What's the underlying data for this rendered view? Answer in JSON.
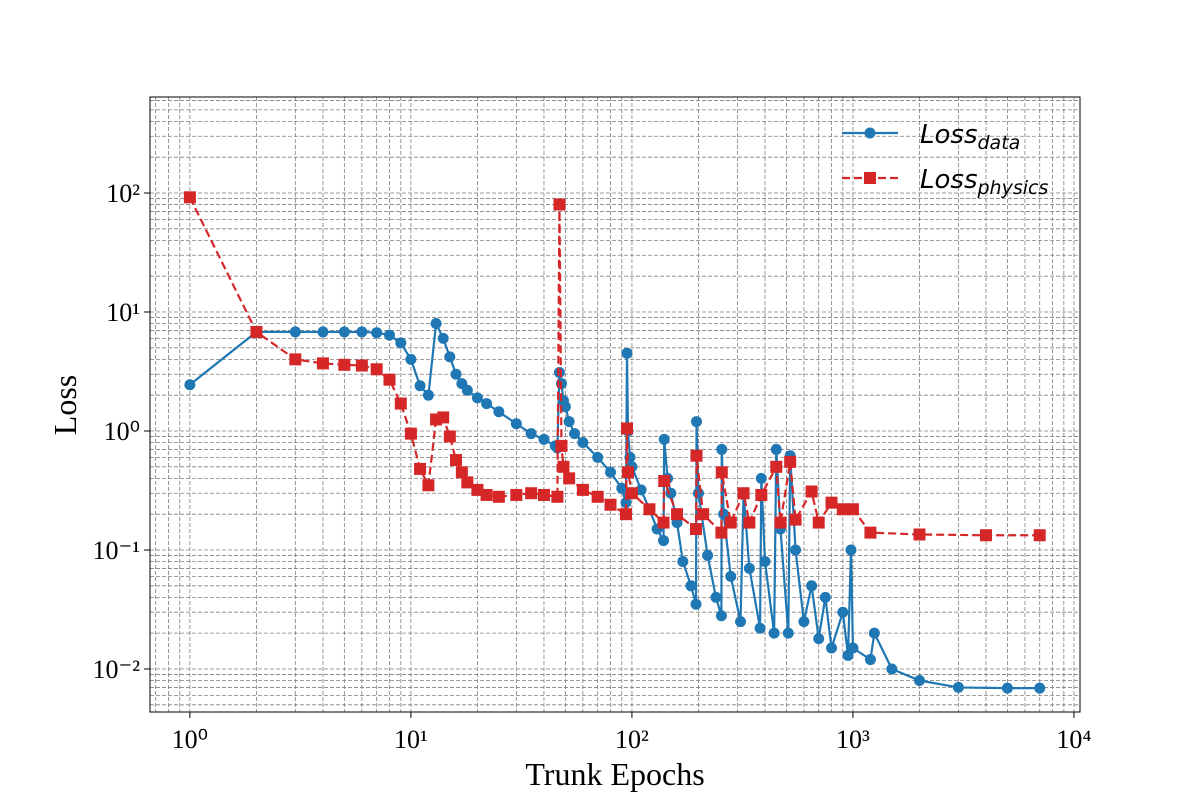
{
  "chart_data": {
    "type": "line",
    "x_label": "Trunk Epochs",
    "y_label": "Loss",
    "xscale": "log",
    "yscale": "log",
    "grid": true,
    "minor_grid": true,
    "legend": "upper right",
    "xlim": [
      0.66,
      10650
    ],
    "ylim": [
      0.00435,
      641
    ],
    "xticks": [
      {
        "value": 1,
        "label": "10⁰"
      },
      {
        "value": 10,
        "label": "10¹"
      },
      {
        "value": 100,
        "label": "10²"
      },
      {
        "value": 1000,
        "label": "10³"
      },
      {
        "value": 10000,
        "label": "10⁴"
      }
    ],
    "yticks": [
      {
        "value": 0.01,
        "label": "10⁻²"
      },
      {
        "value": 0.1,
        "label": "10⁻¹"
      },
      {
        "value": 1,
        "label": "10⁰"
      },
      {
        "value": 10,
        "label": "10¹"
      },
      {
        "value": 100,
        "label": "10²"
      }
    ],
    "series": [
      {
        "name": "Loss_data",
        "color": "#1f77b4",
        "marker": "circle",
        "linestyle": "solid",
        "x": [
          1,
          2,
          3,
          4,
          5,
          6,
          7,
          8,
          9,
          10,
          11,
          12,
          13,
          14,
          15,
          16,
          17,
          18,
          20,
          22,
          25,
          30,
          35,
          40,
          45,
          46,
          47,
          48,
          49,
          50,
          52,
          55,
          60,
          70,
          80,
          90,
          94,
          95,
          96,
          98,
          100,
          110,
          120,
          130,
          139,
          140,
          145,
          150,
          160,
          170,
          185,
          195,
          196,
          200,
          220,
          240,
          254,
          255,
          260,
          280,
          310,
          320,
          340,
          380,
          385,
          400,
          440,
          450,
          470,
          510,
          520,
          550,
          600,
          650,
          700,
          750,
          800,
          900,
          950,
          980,
          1000,
          1200,
          1250,
          1500,
          2000,
          3000,
          5000,
          7000
        ],
        "values": [
          2.45,
          6.8,
          6.8,
          6.8,
          6.8,
          6.8,
          6.7,
          6.4,
          5.5,
          4.0,
          2.4,
          2.0,
          8.0,
          6.0,
          4.2,
          3.0,
          2.5,
          2.2,
          1.9,
          1.7,
          1.45,
          1.15,
          0.95,
          0.85,
          0.75,
          0.72,
          3.1,
          2.5,
          1.8,
          1.6,
          1.2,
          0.95,
          0.8,
          0.6,
          0.45,
          0.33,
          0.25,
          4.5,
          1.0,
          0.6,
          0.5,
          0.32,
          0.22,
          0.15,
          0.12,
          0.85,
          0.4,
          0.3,
          0.17,
          0.08,
          0.05,
          0.035,
          1.2,
          0.3,
          0.09,
          0.04,
          0.028,
          0.7,
          0.2,
          0.06,
          0.025,
          0.3,
          0.07,
          0.022,
          0.4,
          0.08,
          0.02,
          0.7,
          0.15,
          0.02,
          0.62,
          0.1,
          0.025,
          0.05,
          0.018,
          0.04,
          0.015,
          0.03,
          0.013,
          0.1,
          0.015,
          0.012,
          0.02,
          0.01,
          0.008,
          0.007,
          0.0069,
          0.0069
        ]
      },
      {
        "name": "Loss_physics",
        "color": "#d62728",
        "marker": "square",
        "linestyle": "dashed",
        "x": [
          1,
          2,
          3,
          4,
          5,
          6,
          7,
          8,
          9,
          10,
          11,
          12,
          13,
          14,
          15,
          16,
          17,
          18,
          20,
          22,
          25,
          30,
          35,
          40,
          46,
          47,
          48,
          49,
          52,
          60,
          70,
          80,
          94,
          95,
          96,
          100,
          120,
          139,
          140,
          160,
          195,
          196,
          210,
          254,
          255,
          280,
          320,
          340,
          385,
          450,
          470,
          520,
          550,
          650,
          700,
          800,
          900,
          1000,
          1200,
          2000,
          4000,
          7000
        ],
        "values": [
          92,
          6.8,
          4.0,
          3.7,
          3.6,
          3.55,
          3.3,
          2.7,
          1.7,
          0.95,
          0.48,
          0.35,
          1.25,
          1.3,
          0.9,
          0.57,
          0.45,
          0.37,
          0.32,
          0.29,
          0.28,
          0.29,
          0.3,
          0.29,
          0.28,
          80,
          0.75,
          0.5,
          0.4,
          0.32,
          0.28,
          0.24,
          0.2,
          1.05,
          0.45,
          0.3,
          0.22,
          0.17,
          0.38,
          0.2,
          0.15,
          0.62,
          0.2,
          0.14,
          0.45,
          0.17,
          0.3,
          0.17,
          0.29,
          0.5,
          0.17,
          0.55,
          0.18,
          0.31,
          0.17,
          0.25,
          0.22,
          0.22,
          0.14,
          0.135,
          0.133,
          0.133
        ]
      }
    ]
  }
}
